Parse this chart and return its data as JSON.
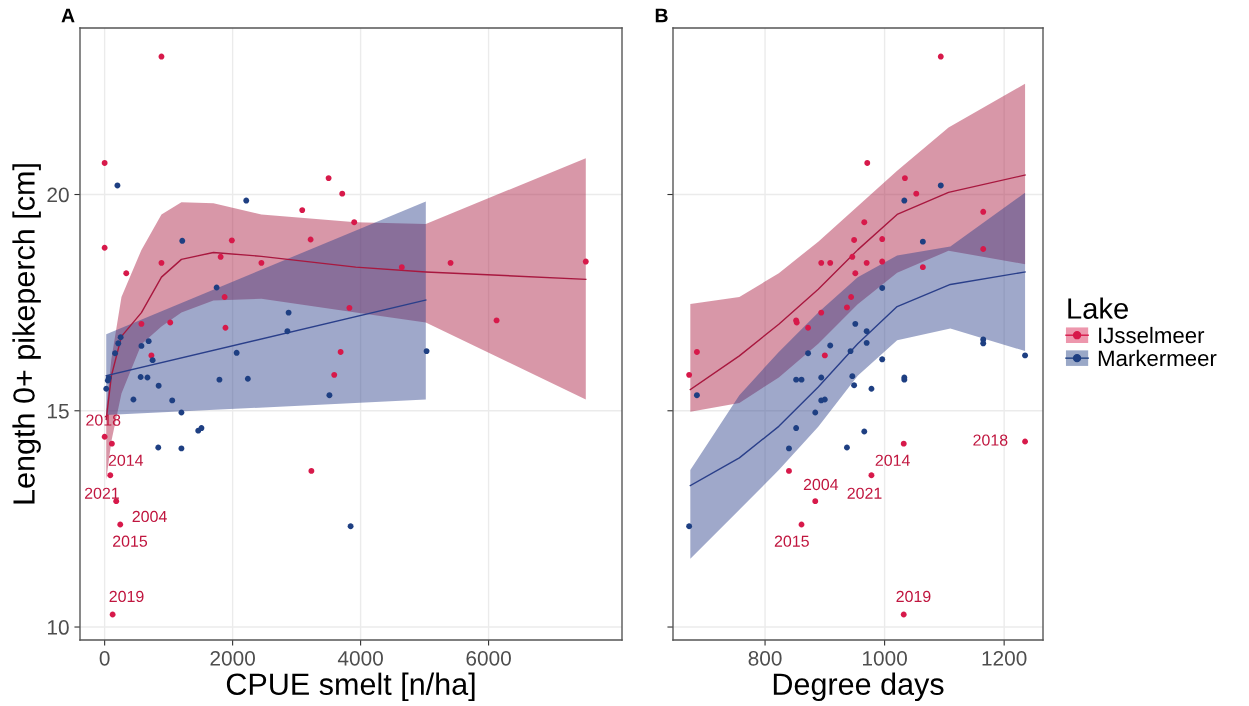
{
  "chart_data": [
    {
      "type": "scatter",
      "title": "A",
      "xlabel": "CPUE smelt [n/ha]",
      "ylabel": "Length 0+ pikeperch [cm]",
      "xlim": [
        -385,
        8085
      ],
      "ylim": [
        9.7,
        23.85
      ],
      "xticks": [
        0,
        2000,
        4000,
        6000
      ],
      "yticks": [
        10,
        15,
        20
      ],
      "grid": true,
      "series": [
        {
          "marker": "circle",
          "color": "#d7194a",
          "x": [
            888,
            0,
            0,
            338,
            575,
            888,
            1025,
            1813,
            1875,
            1988,
            2450,
            1888,
            3088,
            3219,
            3500,
            3713,
            3900,
            3825,
            3688,
            3588,
            3231,
            731,
            4644,
            5406,
            7519,
            6125,
            0,
            113,
            88,
            181,
            244,
            125
          ],
          "values": [
            23.19,
            20.73,
            18.77,
            18.18,
            17.01,
            18.42,
            17.04,
            18.56,
            17.63,
            18.94,
            18.42,
            16.92,
            19.64,
            18.96,
            20.38,
            20.02,
            19.36,
            17.38,
            16.36,
            15.83,
            13.61,
            16.28,
            18.32,
            18.42,
            18.45,
            17.09,
            14.4,
            14.24,
            13.51,
            12.91,
            12.37,
            10.29
          ]
        },
        {
          "marker": "circle",
          "color": "#1e3f82",
          "x": [
            200,
            2213,
            1213,
            1750,
            2875,
            2856,
            2063,
            1794,
            2238,
            3513,
            250,
            213,
            163,
            63,
            50,
            25,
            450,
            563,
            669,
            688,
            575,
            750,
            844,
            1056,
            1200,
            1463,
            1513,
            838,
            1200,
            3844,
            5031
          ],
          "values": [
            20.21,
            19.86,
            18.93,
            17.85,
            17.27,
            16.84,
            16.34,
            15.72,
            15.74,
            15.36,
            16.7,
            16.56,
            16.33,
            15.76,
            15.7,
            15.51,
            15.26,
            15.78,
            15.77,
            16.61,
            16.5,
            16.17,
            15.58,
            15.24,
            14.96,
            14.54,
            14.6,
            14.15,
            14.13,
            12.33,
            16.38
          ]
        },
        {
          "type": "line",
          "color": "#a8183f",
          "x": [
            25,
            106,
            263,
            575,
            888,
            1200,
            1700,
            2450,
            3925,
            5019,
            7519
          ],
          "values": [
            14.8,
            15.81,
            16.72,
            17.27,
            18.09,
            18.5,
            18.66,
            18.57,
            18.32,
            18.21,
            18.04
          ],
          "lower": [
            13.4,
            14.3,
            15.4,
            16.54,
            16.95,
            17.27,
            17.55,
            17.59,
            17.27,
            17.04,
            15.26
          ],
          "upper": [
            15.04,
            16.2,
            17.63,
            18.72,
            19.54,
            19.82,
            19.8,
            19.54,
            19.36,
            19.32,
            20.84
          ]
        },
        {
          "type": "line",
          "color": "#2a3f8a",
          "x": [
            25,
            5019
          ],
          "values": [
            15.81,
            17.56
          ],
          "lower": [
            14.9,
            15.26
          ],
          "upper": [
            16.77,
            19.84
          ]
        }
      ],
      "annotations": [
        {
          "text": "2018",
          "x": 0,
          "y": 14.4
        },
        {
          "text": "2014",
          "x": 113,
          "y": 14.24
        },
        {
          "text": "2021",
          "x": 88,
          "y": 13.51
        },
        {
          "text": "2004",
          "x": 181,
          "y": 12.91
        },
        {
          "text": "2015",
          "x": 244,
          "y": 12.37
        },
        {
          "text": "2019",
          "x": 125,
          "y": 10.29
        }
      ]
    },
    {
      "type": "scatter",
      "title": "B",
      "xlabel": "Degree days",
      "xlim": [
        646,
        1265
      ],
      "ylim": [
        9.7,
        23.85
      ],
      "xticks": [
        800,
        1000,
        1200
      ],
      "yticks": [
        10,
        15,
        20
      ],
      "tick_labels": "x",
      "grid": true,
      "legend": "right",
      "legend_title": "Lake",
      "series": [
        {
          "marker": "circle",
          "name": "IJsselmeer",
          "color": "#d7194a",
          "x": [
            673,
            686,
            1094,
            971,
            1034,
            1053,
            966,
            949,
            946,
            996,
            894,
            909,
            951,
            970,
            996,
            944,
            937,
            894,
            852,
            853,
            872,
            900,
            1064,
            1165,
            1165,
            1032,
            978,
            884,
            861,
            840,
            1032,
            1235
          ],
          "values": [
            15.83,
            16.36,
            23.19,
            20.73,
            20.38,
            20.02,
            19.36,
            18.95,
            18.56,
            18.97,
            18.42,
            18.42,
            18.18,
            18.42,
            18.45,
            17.63,
            17.39,
            17.27,
            17.09,
            17.04,
            16.92,
            16.28,
            18.32,
            19.6,
            18.74,
            14.24,
            13.51,
            12.91,
            12.37,
            13.61,
            10.29,
            14.29
          ]
        },
        {
          "marker": "circle",
          "name": "Markermeer",
          "color": "#1e3f82",
          "x": [
            673,
            840,
            852,
            884,
            894,
            900,
            937,
            966,
            852,
            861,
            894,
            946,
            949,
            978,
            1033,
            1033,
            996,
            872,
            909,
            943,
            970,
            951,
            970,
            996,
            686,
            1064,
            1094,
            1033,
            1165,
            1165,
            1235
          ],
          "values": [
            12.33,
            14.13,
            14.6,
            14.96,
            15.24,
            15.26,
            14.15,
            14.52,
            15.72,
            15.72,
            15.77,
            15.8,
            15.59,
            15.51,
            15.72,
            15.77,
            16.19,
            16.33,
            16.51,
            16.38,
            16.57,
            17.01,
            16.84,
            17.84,
            15.36,
            18.91,
            20.21,
            19.86,
            16.65,
            16.56,
            16.28
          ]
        },
        {
          "type": "line",
          "color": "#a8183f",
          "x": [
            675,
            757,
            823,
            889,
            955,
            1021,
            1107,
            1235
          ],
          "values": [
            15.49,
            16.27,
            17.0,
            17.81,
            18.72,
            19.54,
            20.05,
            20.45
          ],
          "lower": [
            14.98,
            15.18,
            15.77,
            16.55,
            17.46,
            18.19,
            18.7,
            18.39
          ],
          "upper": [
            17.47,
            17.63,
            18.18,
            18.91,
            19.73,
            20.55,
            21.55,
            22.56
          ]
        },
        {
          "type": "line",
          "color": "#2a3f8a",
          "x": [
            675,
            757,
            823,
            889,
            955,
            1021,
            1110,
            1235
          ],
          "values": [
            13.27,
            13.91,
            14.64,
            15.55,
            16.55,
            17.41,
            17.92,
            18.21
          ],
          "lower": [
            11.58,
            12.71,
            13.63,
            14.63,
            15.81,
            16.63,
            16.9,
            16.38
          ],
          "upper": [
            13.63,
            15.36,
            16.36,
            17.27,
            18.09,
            18.59,
            18.8,
            20.04
          ]
        }
      ],
      "annotations": [
        {
          "text": "2014",
          "x": 1032,
          "y": 14.24
        },
        {
          "text": "2021",
          "x": 978,
          "y": 13.51
        },
        {
          "text": "2004",
          "x": 884,
          "y": 12.91
        },
        {
          "text": "2015",
          "x": 861,
          "y": 12.37
        },
        {
          "text": "2019",
          "x": 1032,
          "y": 10.29
        },
        {
          "text": "2018",
          "x": 1235,
          "y": 14.29
        }
      ]
    }
  ]
}
